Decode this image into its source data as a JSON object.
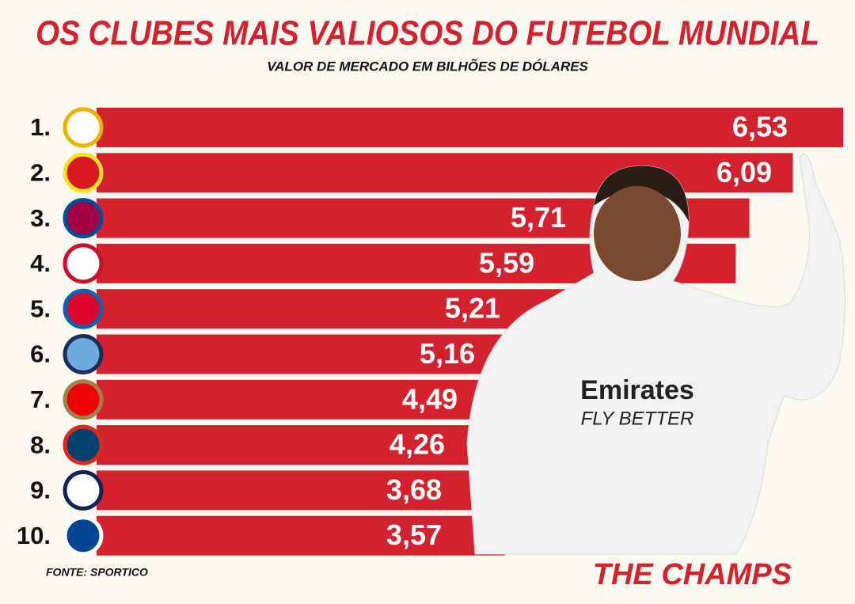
{
  "chart_data": {
    "type": "bar",
    "orientation": "horizontal",
    "title": "OS CLUBES MAIS VALIOSOS DO FUTEBOL MUNDIAL",
    "subtitle": "VALOR DE MERCADO EM BILHÕES DE DÓLARES",
    "categories": [
      "1.",
      "2.",
      "3.",
      "4.",
      "5.",
      "6.",
      "7.",
      "8.",
      "9.",
      "10."
    ],
    "values": [
      6.53,
      6.09,
      5.71,
      5.59,
      5.21,
      5.16,
      4.49,
      4.26,
      3.68,
      3.57
    ],
    "value_labels": [
      "6,53",
      "6,09",
      "5,71",
      "5,59",
      "5,21",
      "5,16",
      "4,49",
      "4,26",
      "3,68",
      "3,57"
    ],
    "color": "#d3212d",
    "source": "FONTE: SPORTICO",
    "brand": "THE CHAMPS"
  }
}
